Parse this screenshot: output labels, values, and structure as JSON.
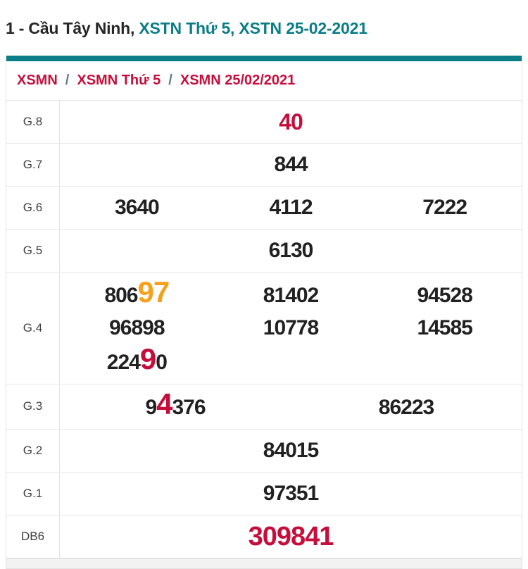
{
  "colors": {
    "teal": "#0A7D86",
    "red": "#C60E3C",
    "orange": "#F9A01B",
    "slash": "#5D7B93"
  },
  "title": {
    "plain": "1 - Cầu Tây Ninh, ",
    "link_day": "XSTN Thứ 5, ",
    "link_date": "XSTN 25-02-2021"
  },
  "breadcrumb": {
    "separator": "/",
    "items": [
      {
        "label": "XSMN"
      },
      {
        "label": "XSMN Thứ 5"
      },
      {
        "label": "XSMN 25/02/2021"
      }
    ]
  },
  "results": {
    "rows": [
      {
        "label": "G.8",
        "cols": 1,
        "color": "red",
        "size": "medium",
        "lines": [
          [
            [
              {
                "t": "40"
              }
            ]
          ]
        ]
      },
      {
        "label": "G.7",
        "cols": 1,
        "lines": [
          [
            [
              {
                "t": "844"
              }
            ]
          ]
        ]
      },
      {
        "label": "G.6",
        "cols": 3,
        "lines": [
          [
            [
              {
                "t": "3640"
              }
            ],
            [
              {
                "t": "4112"
              }
            ],
            [
              {
                "t": "7222"
              }
            ]
          ]
        ]
      },
      {
        "label": "G.5",
        "cols": 1,
        "lines": [
          [
            [
              {
                "t": "6130"
              }
            ]
          ]
        ]
      },
      {
        "label": "G.4",
        "cols": 3,
        "lines": [
          [
            [
              {
                "t": "806"
              },
              {
                "t": "97",
                "hl": "orange"
              }
            ],
            [
              {
                "t": "81402"
              }
            ],
            [
              {
                "t": "94528"
              }
            ]
          ],
          [
            [
              {
                "t": "96898"
              }
            ],
            [
              {
                "t": "10778"
              }
            ],
            [
              {
                "t": "14585"
              }
            ]
          ],
          [
            [
              {
                "t": "224"
              },
              {
                "t": "9",
                "hl": "red"
              },
              {
                "t": "0"
              }
            ]
          ]
        ]
      },
      {
        "label": "G.3",
        "cols": 2,
        "lines": [
          [
            [
              {
                "t": "9"
              },
              {
                "t": "4",
                "hl": "red"
              },
              {
                "t": "376"
              }
            ],
            [
              {
                "t": "86223"
              }
            ]
          ]
        ]
      },
      {
        "label": "G.2",
        "cols": 1,
        "lines": [
          [
            [
              {
                "t": "84015"
              }
            ]
          ]
        ]
      },
      {
        "label": "G.1",
        "cols": 1,
        "lines": [
          [
            [
              {
                "t": "97351"
              }
            ]
          ]
        ]
      },
      {
        "label": "DB6",
        "cols": 1,
        "color": "red",
        "size": "large",
        "lines": [
          [
            [
              {
                "t": "309841"
              }
            ]
          ]
        ]
      }
    ]
  }
}
